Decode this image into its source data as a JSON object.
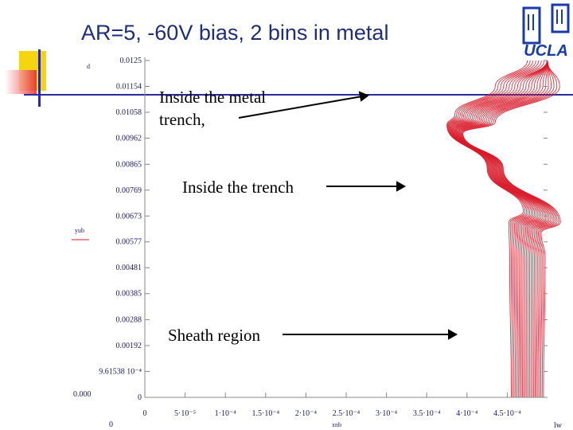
{
  "slide": {
    "title": "AR=5, -60V bias, 2 bins in metal"
  },
  "logo": {
    "text": "UCLA"
  },
  "annotations": [
    {
      "id": "metal",
      "lines": [
        "Inside the metal",
        "trench,"
      ]
    },
    {
      "id": "trench",
      "lines": [
        "Inside the trench"
      ]
    },
    {
      "id": "sheath",
      "lines": [
        "Sheath region"
      ]
    }
  ],
  "colors": {
    "title": "#1f2d7a",
    "trajectory": "#d81b2a",
    "axis_text": "#1a1a66",
    "deco_yellow": "#f5d410",
    "deco_red": "#e8262e",
    "deco_blue": "#2b2b9e",
    "logo_blue": "#1a3aa8"
  },
  "chart_data": {
    "type": "line",
    "title": "",
    "xlabel": "xnb",
    "ylabel": "yub",
    "x_end_label": "lw",
    "y_top_label": "d",
    "xlim": [
      0,
      0.0005
    ],
    "ylim": [
      0,
      0.0125
    ],
    "grid": false,
    "legend": "none",
    "x_ticks": [
      {
        "value": 0,
        "label": "0"
      },
      {
        "value": 5e-05,
        "label": "5·10⁻⁵"
      },
      {
        "value": 0.0001,
        "label": "1·10⁻⁴"
      },
      {
        "value": 0.00015,
        "label": "1.5·10⁻⁴"
      },
      {
        "value": 0.0002,
        "label": "2·10⁻⁴"
      },
      {
        "value": 0.00025,
        "label": "2.5·10⁻⁴"
      },
      {
        "value": 0.0003,
        "label": "3·10⁻⁴"
      },
      {
        "value": 0.00035,
        "label": "3.5·10⁻⁴"
      },
      {
        "value": 0.0004,
        "label": "4·10⁻⁴"
      },
      {
        "value": 0.00045,
        "label": "4.5·10⁻⁴"
      }
    ],
    "y_ticks": [
      {
        "value": 0.0125,
        "label": "0.0125"
      },
      {
        "value": 0.01154,
        "label": "0.01154"
      },
      {
        "value": 0.01058,
        "label": "0.01058"
      },
      {
        "value": 0.00962,
        "label": "0.00962"
      },
      {
        "value": 0.00865,
        "label": "0.00865"
      },
      {
        "value": 0.00769,
        "label": "0.00769"
      },
      {
        "value": 0.00673,
        "label": "0.00673"
      },
      {
        "value": 0.00577,
        "label": "0.00577"
      },
      {
        "value": 0.00481,
        "label": "0.00481"
      },
      {
        "value": 0.00385,
        "label": "0.00385"
      },
      {
        "value": 0.00288,
        "label": "0.00288"
      },
      {
        "value": 0.00192,
        "label": "0.00192"
      },
      {
        "value": 0.000961538,
        "label": "9.61538 10⁻⁴"
      },
      {
        "value": 0,
        "label": "0"
      }
    ],
    "outer_labels": {
      "left_zero": "0.000",
      "bottom_left_zero": "0"
    },
    "series_template": {
      "description_free": true,
      "count": 24,
      "x_start_min": 0.000455,
      "x_start_max": 0.000495,
      "y_kink_low": 0.0065,
      "y_kink_high": 0.0105,
      "x_shift_upper": 8e-05,
      "y_end": 0.0125,
      "y_start": 0
    }
  }
}
